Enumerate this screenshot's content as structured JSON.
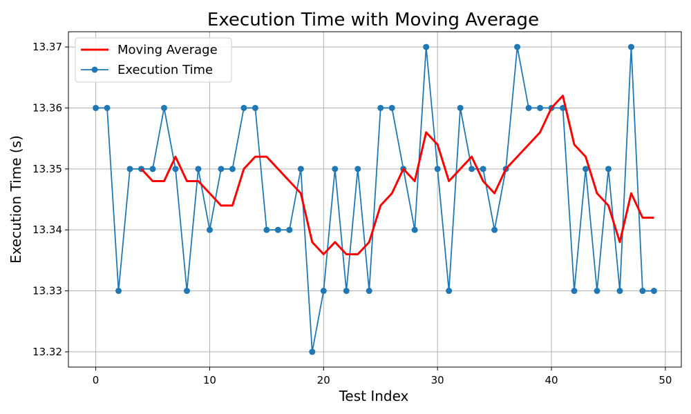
{
  "chart_data": {
    "type": "line",
    "title": "Execution Time with Moving Average",
    "xlabel": "Test Index",
    "ylabel": "Execution Time (s)",
    "xlim": [
      -2.4,
      51.4
    ],
    "ylim": [
      13.3175,
      13.3725
    ],
    "xticks": [
      0,
      10,
      20,
      30,
      40,
      50
    ],
    "yticks": [
      13.32,
      13.33,
      13.34,
      13.35,
      13.36,
      13.37
    ],
    "xtick_labels": [
      "0",
      "10",
      "20",
      "30",
      "40",
      "50"
    ],
    "ytick_labels": [
      "13.32",
      "13.33",
      "13.34",
      "13.35",
      "13.36",
      "13.37"
    ],
    "grid": true,
    "legend_position": "top-left",
    "series": [
      {
        "name": "Moving Average",
        "color": "#ff0000",
        "marker": "none",
        "x": [
          4,
          5,
          6,
          7,
          8,
          9,
          10,
          11,
          12,
          13,
          14,
          15,
          16,
          17,
          18,
          19,
          20,
          21,
          22,
          23,
          24,
          25,
          26,
          27,
          28,
          29,
          30,
          31,
          32,
          33,
          34,
          35,
          36,
          37,
          38,
          39,
          40,
          41,
          42,
          43,
          44,
          45,
          46,
          47,
          48,
          49
        ],
        "y": [
          13.35,
          13.348,
          13.348,
          13.352,
          13.348,
          13.348,
          13.346,
          13.344,
          13.344,
          13.35,
          13.352,
          13.352,
          13.35,
          13.348,
          13.346,
          13.338,
          13.336,
          13.338,
          13.336,
          13.336,
          13.338,
          13.344,
          13.346,
          13.35,
          13.348,
          13.356,
          13.354,
          13.348,
          13.35,
          13.352,
          13.348,
          13.346,
          13.35,
          13.352,
          13.354,
          13.356,
          13.36,
          13.362,
          13.354,
          13.352,
          13.346,
          13.344,
          13.338,
          13.346,
          13.342,
          13.342
        ]
      },
      {
        "name": "Execution Time",
        "color": "#1f77b4",
        "marker": "circle",
        "x": [
          0,
          1,
          2,
          3,
          4,
          5,
          6,
          7,
          8,
          9,
          10,
          11,
          12,
          13,
          14,
          15,
          16,
          17,
          18,
          19,
          20,
          21,
          22,
          23,
          24,
          25,
          26,
          27,
          28,
          29,
          30,
          31,
          32,
          33,
          34,
          35,
          36,
          37,
          38,
          39,
          40,
          41,
          42,
          43,
          44,
          45,
          46,
          47,
          48,
          49
        ],
        "y": [
          13.36,
          13.36,
          13.33,
          13.35,
          13.35,
          13.35,
          13.36,
          13.35,
          13.33,
          13.35,
          13.34,
          13.35,
          13.35,
          13.36,
          13.36,
          13.34,
          13.34,
          13.34,
          13.35,
          13.32,
          13.33,
          13.35,
          13.33,
          13.35,
          13.33,
          13.36,
          13.36,
          13.35,
          13.34,
          13.37,
          13.35,
          13.33,
          13.36,
          13.35,
          13.35,
          13.34,
          13.35,
          13.37,
          13.36,
          13.36,
          13.36,
          13.36,
          13.33,
          13.35,
          13.33,
          13.35,
          13.33,
          13.37,
          13.33,
          13.33
        ]
      }
    ]
  }
}
